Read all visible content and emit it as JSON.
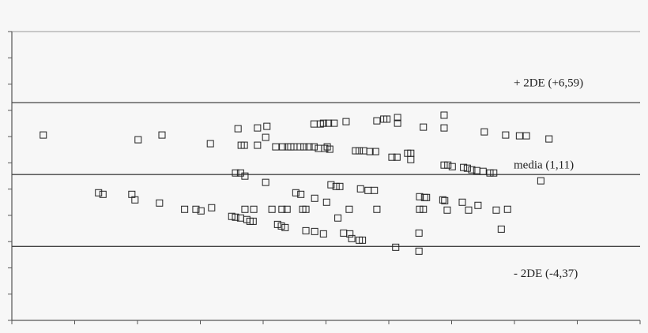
{
  "chart_data": {
    "type": "scatter",
    "xlim": [
      0,
      10
    ],
    "xticks": [
      0,
      1,
      2,
      3,
      4,
      5,
      6,
      7,
      8,
      9,
      10
    ],
    "ylim": [
      -10,
      12
    ],
    "yticks": [
      -10,
      -8,
      -6,
      -4,
      -2,
      0,
      2,
      4,
      6,
      8,
      10,
      12
    ],
    "color": "#222222",
    "reference_lines": [
      {
        "value": 6.59,
        "label": "+ 2DE (+6,59)"
      },
      {
        "value": 1.11,
        "label": "media (1,11)"
      },
      {
        "value": -4.37,
        "label": "- 2DE (-4,37)"
      }
    ],
    "x": [
      0.5,
      2.01,
      2.39,
      3.16,
      3.6,
      3.91,
      4.06,
      4.04,
      3.65,
      3.7,
      3.91,
      4.2,
      4.31,
      4.39,
      4.44,
      4.49,
      4.59,
      4.65,
      4.73,
      4.81,
      4.88,
      4.98,
      5.02,
      5.06,
      4.81,
      4.91,
      4.96,
      5.04,
      5.13,
      5.32,
      5.47,
      5.53,
      5.6,
      5.7,
      5.79,
      5.81,
      5.92,
      5.97,
      6.14,
      6.14,
      6.05,
      6.13,
      6.3,
      6.35,
      6.35,
      6.55,
      6.88,
      6.88,
      7.52,
      7.86,
      8.08,
      8.19,
      8.55,
      6.88,
      6.94,
      7.01,
      7.19,
      7.25,
      7.32,
      7.4,
      7.5,
      7.61,
      7.67,
      3.56,
      3.64,
      3.71,
      4.04,
      5.08,
      5.16,
      5.22,
      5.55,
      5.67,
      5.77,
      4.52,
      4.6,
      4.82,
      5.01,
      6.49,
      6.57,
      6.6,
      6.86,
      6.89,
      8.42,
      1.38,
      1.45,
      1.91,
      1.96,
      2.35,
      2.75,
      2.93,
      3.01,
      3.18,
      3.71,
      3.85,
      4.14,
      4.3,
      4.38,
      4.63,
      4.68,
      5.37,
      5.81,
      6.49,
      6.55,
      6.93,
      7.17,
      7.27,
      7.42,
      7.71,
      7.89,
      3.5,
      3.56,
      3.64,
      3.74,
      3.79,
      3.84,
      5.19,
      4.23,
      4.29,
      4.35,
      4.68,
      4.82,
      4.96,
      5.28,
      5.38,
      5.41,
      5.53,
      5.58,
      6.48,
      7.79,
      6.11,
      6.48
    ],
    "values": [
      4.12,
      3.76,
      4.12,
      3.46,
      4.6,
      4.66,
      4.78,
      3.94,
      3.34,
      3.34,
      3.34,
      3.22,
      3.22,
      3.22,
      3.22,
      3.22,
      3.22,
      3.22,
      3.22,
      3.22,
      3.1,
      3.1,
      3.22,
      3.04,
      4.96,
      4.96,
      5.02,
      5.02,
      5.02,
      5.14,
      2.92,
      2.92,
      2.92,
      2.86,
      2.86,
      5.2,
      5.33,
      5.33,
      5.45,
      5.02,
      2.43,
      2.43,
      2.73,
      2.73,
      2.25,
      4.72,
      5.63,
      4.66,
      4.36,
      4.12,
      4.06,
      4.06,
      3.82,
      1.83,
      1.83,
      1.71,
      1.65,
      1.59,
      1.47,
      1.41,
      1.35,
      1.23,
      1.23,
      1.23,
      1.23,
      0.99,
      0.51,
      0.33,
      0.2,
      0.2,
      0.02,
      -0.1,
      -0.1,
      -0.28,
      -0.4,
      -0.7,
      -1,
      -0.58,
      -0.64,
      -0.64,
      -0.82,
      -0.88,
      0.63,
      -0.28,
      -0.4,
      -0.4,
      -0.82,
      -1.06,
      -1.54,
      -1.54,
      -1.66,
      -1.42,
      -1.54,
      -1.54,
      -1.54,
      -1.54,
      -1.54,
      -1.54,
      -1.54,
      -1.54,
      -1.54,
      -1.54,
      -1.54,
      -1.6,
      -1,
      -1.6,
      -1.24,
      -1.6,
      -1.54,
      -2.08,
      -2.14,
      -2.2,
      -2.32,
      -2.45,
      -2.45,
      -2.2,
      -2.69,
      -2.81,
      -2.93,
      -3.17,
      -3.23,
      -3.41,
      -3.35,
      -3.41,
      -3.77,
      -3.89,
      -3.89,
      -3.35,
      -3.05,
      -4.43,
      -4.73
    ]
  }
}
